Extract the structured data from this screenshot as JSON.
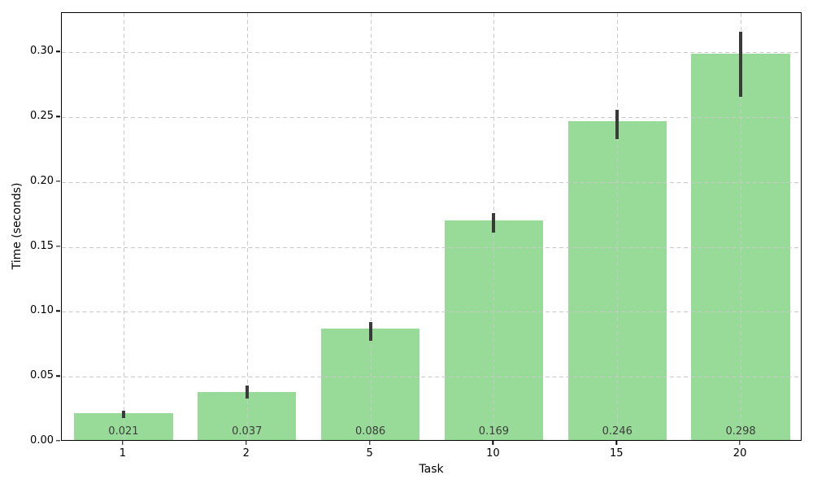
{
  "figure": {
    "background": "#FFFFFF",
    "bar_color": "#98DB98",
    "error_bar_color": "#3A3A3A",
    "grid_color": "#C9C9C9",
    "value_label_color": "#3C3C3C",
    "spine_color": "#000000"
  },
  "chart_data": {
    "type": "bar",
    "title": "",
    "xlabel": "Task",
    "ylabel": "Time (seconds)",
    "categories": [
      "1",
      "2",
      "5",
      "10",
      "15",
      "20"
    ],
    "values": [
      0.021,
      0.037,
      0.086,
      0.169,
      0.246,
      0.298
    ],
    "bar_value_labels": [
      "0.021",
      "0.037",
      "0.086",
      "0.169",
      "0.246",
      "0.298"
    ],
    "error_low": [
      0.018,
      0.033,
      0.078,
      0.161,
      0.233,
      0.266
    ],
    "error_high": [
      0.024,
      0.043,
      0.092,
      0.176,
      0.256,
      0.316
    ],
    "ylim": [
      0,
      0.3303
    ],
    "yticks": [
      0.0,
      0.05,
      0.1,
      0.15,
      0.2,
      0.25,
      0.3
    ],
    "ytick_labels": [
      "0.00",
      "0.05",
      "0.10",
      "0.15",
      "0.20",
      "0.25",
      "0.30"
    ],
    "grid": true,
    "grid_style": "dashed",
    "grid_over_bars": true,
    "legend": "none",
    "bar_width_fraction": 0.8
  }
}
